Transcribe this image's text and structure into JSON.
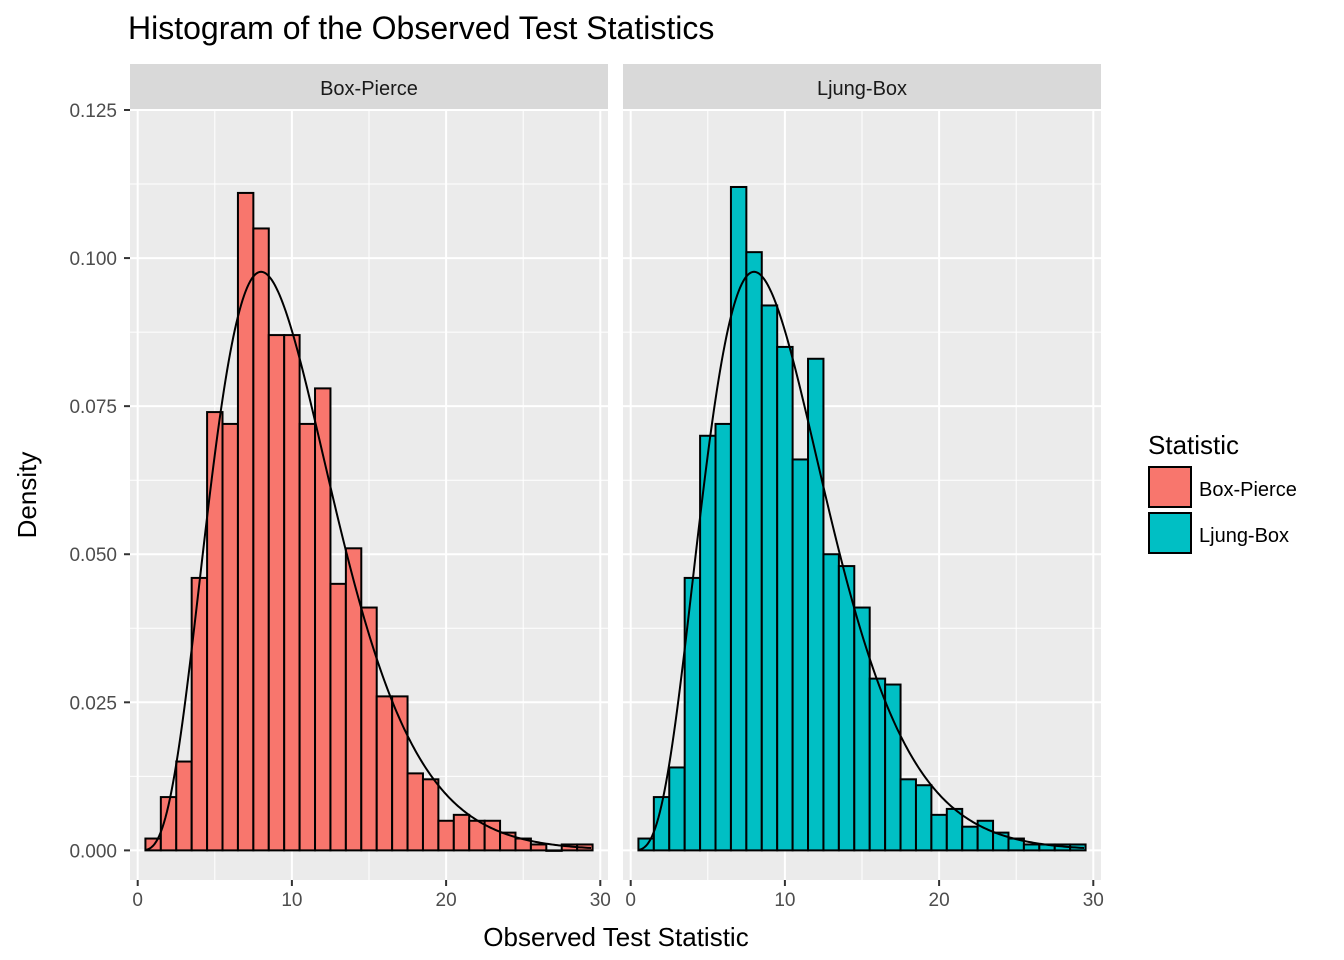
{
  "chart_data": {
    "type": "bar",
    "title": "Histogram of the Observed Test Statistics",
    "xlabel": "Observed Test Statistic",
    "ylabel": "Density",
    "xlim": [
      -0.5,
      30.5
    ],
    "ylim": [
      -0.005,
      0.125
    ],
    "x_ticks": [
      0,
      10,
      20,
      30
    ],
    "x_tick_labels": [
      "0",
      "10",
      "20",
      "30"
    ],
    "y_ticks": [
      0,
      0.025,
      0.05,
      0.075,
      0.1,
      0.125
    ],
    "y_tick_labels": [
      "0.000",
      "0.025",
      "0.050",
      "0.075",
      "0.100",
      "0.125"
    ],
    "grid": true,
    "legend": {
      "title": "Statistic",
      "placement": "right",
      "entries": [
        {
          "label": "Box-Pierce",
          "color": "#F8766D"
        },
        {
          "label": "Ljung-Box",
          "color": "#00BFC4"
        }
      ]
    },
    "bin_width": 1,
    "bin_starts": [
      0.5,
      1.5,
      2.5,
      3.5,
      4.5,
      5.5,
      6.5,
      7.5,
      8.5,
      9.5,
      10.5,
      11.5,
      12.5,
      13.5,
      14.5,
      15.5,
      16.5,
      17.5,
      18.5,
      19.5,
      20.5,
      21.5,
      22.5,
      23.5,
      24.5,
      25.5,
      26.5,
      27.5,
      28.5
    ],
    "panels": [
      {
        "strip": "Box-Pierce",
        "fill": "#F8766D",
        "values": [
          0.002,
          0.009,
          0.015,
          0.046,
          0.074,
          0.072,
          0.111,
          0.105,
          0.087,
          0.087,
          0.072,
          0.078,
          0.045,
          0.051,
          0.041,
          0.026,
          0.026,
          0.013,
          0.012,
          0.005,
          0.006,
          0.005,
          0.005,
          0.003,
          0.002,
          0.001,
          0.0,
          0.001,
          0.001
        ],
        "density_curve": {
          "df": 10
        }
      },
      {
        "strip": "Ljung-Box",
        "fill": "#00BFC4",
        "values": [
          0.002,
          0.009,
          0.014,
          0.046,
          0.07,
          0.072,
          0.112,
          0.101,
          0.092,
          0.085,
          0.066,
          0.083,
          0.05,
          0.048,
          0.041,
          0.029,
          0.028,
          0.012,
          0.011,
          0.006,
          0.007,
          0.004,
          0.005,
          0.003,
          0.002,
          0.001,
          0.001,
          0.001,
          0.001
        ],
        "density_curve": {
          "df": 10
        }
      }
    ]
  },
  "colors": {
    "panel_bg": "#EBEBEB",
    "strip_bg": "#D9D9D9",
    "grid": "#FFFFFF",
    "bar_outline": "#000000",
    "axis_text": "#4D4D4D",
    "strip_text": "#1A1A1A"
  }
}
